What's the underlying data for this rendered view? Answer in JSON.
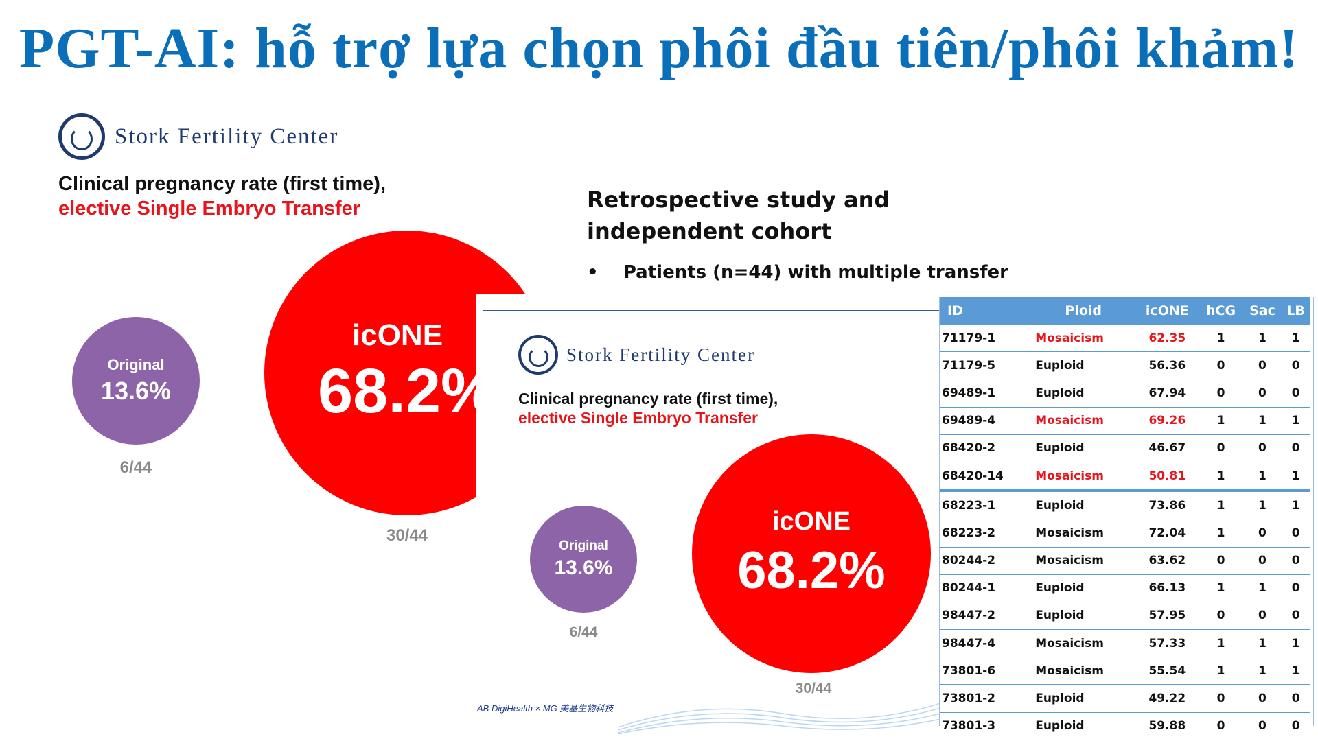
{
  "title": "PGT-AI: hỗ trợ lựa chọn phôi đầu tiên/phôi khảm!",
  "logo_text": "Stork Fertility Center",
  "headline": {
    "line1": "Clinical pregnancy rate (first time),",
    "line2": "elective Single Embryo Transfer"
  },
  "original": {
    "label": "Original",
    "value": "13.6%",
    "fraction": "6/44"
  },
  "icone": {
    "label": "icONE",
    "value": "68.2%",
    "fraction": "30/44"
  },
  "study": {
    "line1": "Retrospective study and",
    "line2": "independent cohort",
    "bullet": "Patients (n=44) with multiple transfer"
  },
  "footer": {
    "brand": "AB DigiHealth × MG 美基生物科技"
  },
  "table": {
    "headers": [
      "ID",
      "Ploid",
      "icONE",
      "hCG",
      "Sac",
      "LB"
    ],
    "rows": [
      [
        "71179-1",
        "Mosaicism",
        "62.35",
        "1",
        "1",
        "1"
      ],
      [
        "71179-5",
        "Euploid",
        "56.36",
        "0",
        "0",
        "0"
      ],
      [
        "69489-1",
        "Euploid",
        "67.94",
        "0",
        "0",
        "0"
      ],
      [
        "69489-4",
        "Mosaicism",
        "69.26",
        "1",
        "1",
        "1"
      ],
      [
        "68420-2",
        "Euploid",
        "46.67",
        "0",
        "0",
        "0"
      ],
      [
        "68420-14",
        "Mosaicism",
        "50.81",
        "1",
        "1",
        "1"
      ],
      [
        "68223-1",
        "Euploid",
        "73.86",
        "1",
        "1",
        "1"
      ],
      [
        "68223-2",
        "Mosaicism",
        "72.04",
        "1",
        "0",
        "0"
      ],
      [
        "80244-2",
        "Mosaicism",
        "63.62",
        "0",
        "0",
        "0"
      ],
      [
        "80244-1",
        "Euploid",
        "66.13",
        "1",
        "1",
        "0"
      ],
      [
        "98447-2",
        "Euploid",
        "57.95",
        "0",
        "0",
        "0"
      ],
      [
        "98447-4",
        "Mosaicism",
        "57.33",
        "1",
        "1",
        "1"
      ],
      [
        "73801-6",
        "Mosaicism",
        "55.54",
        "1",
        "1",
        "1"
      ],
      [
        "73801-2",
        "Euploid",
        "49.22",
        "0",
        "0",
        "0"
      ],
      [
        "73801-3",
        "Euploid",
        "59.88",
        "0",
        "0",
        "0"
      ]
    ],
    "highlight_rows": [
      0,
      3,
      5
    ]
  },
  "colors": {
    "title": "#0a6fb8",
    "red": "#ff0000",
    "purple": "#8e64a8",
    "header": "#5b9bd5"
  }
}
